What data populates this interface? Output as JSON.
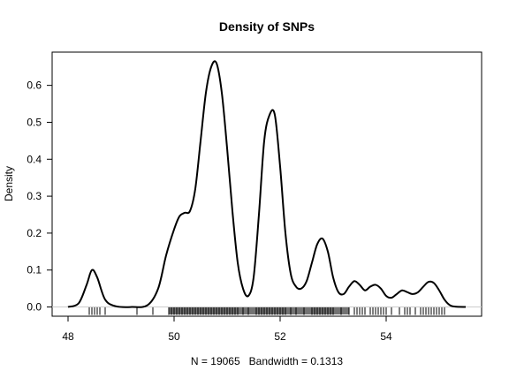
{
  "chart_data": {
    "type": "line",
    "title": "Density of SNPs",
    "xlabel": "N = 19065   Bandwidth = 0.1313",
    "ylabel": "Density",
    "xlim": [
      47.7,
      55.8
    ],
    "ylim": [
      -0.025,
      0.69
    ],
    "xticks": [
      48,
      50,
      52,
      54
    ],
    "yticks": [
      0.0,
      0.1,
      0.2,
      0.3,
      0.4,
      0.5,
      0.6
    ],
    "x_tick_labels": [
      "48",
      "50",
      "52",
      "54"
    ],
    "y_tick_labels": [
      "0.0",
      "0.1",
      "0.2",
      "0.3",
      "0.4",
      "0.5",
      "0.6"
    ],
    "grid": false,
    "legend": "none",
    "series": [
      {
        "x": [
          48.0,
          48.2,
          48.35,
          48.45,
          48.55,
          48.7,
          48.9,
          49.2,
          49.5,
          49.7,
          49.85,
          50.0,
          50.1,
          50.2,
          50.3,
          50.4,
          50.5,
          50.6,
          50.7,
          50.8,
          50.9,
          51.0,
          51.1,
          51.2,
          51.3,
          51.4,
          51.5,
          51.6,
          51.7,
          51.8,
          51.9,
          52.0,
          52.1,
          52.2,
          52.3,
          52.4,
          52.5,
          52.6,
          52.7,
          52.8,
          52.9,
          53.0,
          53.1,
          53.2,
          53.3,
          53.4,
          53.5,
          53.6,
          53.7,
          53.8,
          53.9,
          54.0,
          54.1,
          54.2,
          54.3,
          54.4,
          54.5,
          54.6,
          54.7,
          54.8,
          54.9,
          55.0,
          55.1,
          55.2,
          55.3,
          55.5
        ],
        "y": [
          0.0,
          0.01,
          0.06,
          0.1,
          0.08,
          0.02,
          0.002,
          0.0,
          0.005,
          0.05,
          0.14,
          0.21,
          0.245,
          0.255,
          0.26,
          0.32,
          0.45,
          0.58,
          0.65,
          0.66,
          0.58,
          0.43,
          0.26,
          0.12,
          0.05,
          0.03,
          0.08,
          0.25,
          0.45,
          0.52,
          0.52,
          0.38,
          0.2,
          0.09,
          0.055,
          0.05,
          0.07,
          0.12,
          0.17,
          0.185,
          0.15,
          0.08,
          0.04,
          0.035,
          0.055,
          0.07,
          0.06,
          0.045,
          0.055,
          0.06,
          0.05,
          0.03,
          0.025,
          0.035,
          0.045,
          0.04,
          0.035,
          0.04,
          0.055,
          0.068,
          0.065,
          0.045,
          0.02,
          0.005,
          0.001,
          0.0
        ]
      }
    ],
    "rug_x": [
      48.4,
      48.45,
      48.5,
      48.55,
      48.6,
      48.7,
      49.3,
      49.6,
      49.9,
      49.95,
      50.0,
      50.05,
      50.1,
      50.15,
      50.2,
      50.25,
      50.3,
      50.35,
      50.4,
      50.45,
      50.5,
      50.55,
      50.6,
      50.65,
      50.7,
      50.75,
      50.8,
      50.85,
      50.9,
      50.95,
      51.0,
      51.05,
      51.1,
      51.15,
      51.2,
      51.3,
      51.4,
      51.55,
      51.6,
      51.65,
      51.7,
      51.75,
      51.8,
      51.85,
      51.9,
      51.95,
      52.0,
      52.05,
      52.1,
      52.2,
      52.3,
      52.45,
      52.6,
      52.65,
      52.7,
      52.75,
      52.8,
      52.85,
      52.9,
      52.95,
      53.0,
      53.15,
      53.3,
      53.4,
      53.45,
      53.5,
      53.55,
      53.6,
      53.7,
      53.75,
      53.8,
      53.85,
      53.9,
      53.95,
      54.0,
      54.1,
      54.25,
      54.35,
      54.4,
      54.45,
      54.55,
      54.65,
      54.7,
      54.75,
      54.8,
      54.85,
      54.9,
      54.95,
      55.0,
      55.05,
      55.1
    ]
  }
}
